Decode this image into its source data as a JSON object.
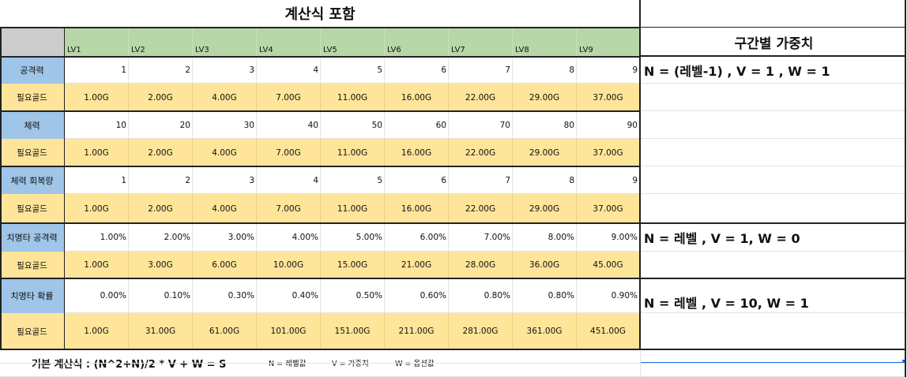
{
  "title": "계산식 포함",
  "levels": [
    "LV1",
    "LV2",
    "LV3",
    "LV4",
    "LV5",
    "LV6",
    "LV7",
    "LV8",
    "LV9"
  ],
  "rows": [
    {
      "label": "공격력",
      "values": [
        "1",
        "2",
        "3",
        "4",
        "5",
        "6",
        "7",
        "8",
        "9"
      ],
      "gold_label": "필요골드",
      "gold": [
        "1.00G",
        "2.00G",
        "4.00G",
        "7.00G",
        "11.00G",
        "16.00G",
        "22.00G",
        "29.00G",
        "37.00G"
      ]
    },
    {
      "label": "체력",
      "values": [
        "10",
        "20",
        "30",
        "40",
        "50",
        "60",
        "70",
        "80",
        "90"
      ],
      "gold_label": "필요골드",
      "gold": [
        "1.00G",
        "2.00G",
        "4.00G",
        "7.00G",
        "11.00G",
        "16.00G",
        "22.00G",
        "29.00G",
        "37.00G"
      ]
    },
    {
      "label": "체력 회복량",
      "values": [
        "1",
        "2",
        "3",
        "4",
        "5",
        "6",
        "7",
        "8",
        "9"
      ],
      "gold_label": "필요골드",
      "gold": [
        "1.00G",
        "2.00G",
        "4.00G",
        "7.00G",
        "11.00G",
        "16.00G",
        "22.00G",
        "29.00G",
        "37.00G"
      ]
    },
    {
      "label": "치명타 공격력",
      "values": [
        "1.00%",
        "2.00%",
        "3.00%",
        "4.00%",
        "5.00%",
        "6.00%",
        "7.00%",
        "8.00%",
        "9.00%"
      ],
      "gold_label": "필요골드",
      "gold": [
        "1.00G",
        "3.00G",
        "6.00G",
        "10.00G",
        "15.00G",
        "21.00G",
        "28.00G",
        "36.00G",
        "45.00G"
      ]
    },
    {
      "label": "치명타 확률",
      "values": [
        "0.00%",
        "0.10%",
        "0.30%",
        "0.40%",
        "0.50%",
        "0.60%",
        "0.80%",
        "0.80%",
        "0.90%"
      ],
      "gold_label": "필요골드",
      "gold": [
        "1.00G",
        "31.00G",
        "61.00G",
        "101.00G",
        "151.00G",
        "211.00G",
        "281.00G",
        "361.00G",
        "451.00G"
      ]
    }
  ],
  "right": {
    "title": "구간별 가중치",
    "formula1": "N = (레벨-1) , V = 1 , W = 1",
    "formula2": "N = 레벨 , V = 1, W = 0",
    "formula3": "N = 레벨 , V = 10, W = 1"
  },
  "bottom": {
    "formula": "기본 계산식 : (N^2+N)/2 * V + W = S",
    "n_def": "N = 레벨값",
    "v_def": "V = 가중치",
    "w_def": "W = 옵션값"
  },
  "colors": {
    "header_green": "#b7d7a8",
    "label_blue": "#9fc5e8",
    "gold_yellow": "#ffe599",
    "corner_gray": "#cccccc"
  }
}
